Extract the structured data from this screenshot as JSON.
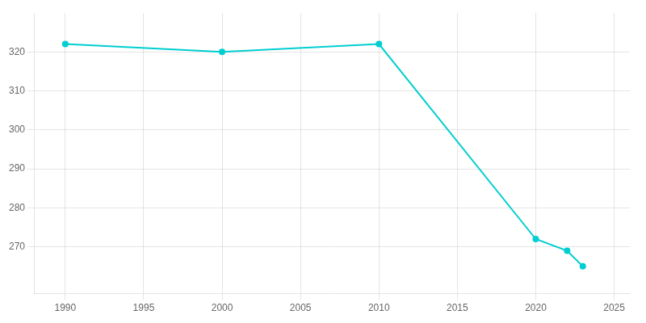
{
  "chart_data": {
    "type": "line",
    "x": [
      1990,
      2000,
      2010,
      2020,
      2022,
      2023
    ],
    "values": [
      322,
      320,
      322,
      272,
      269,
      265
    ],
    "color": "#00CED1",
    "marker": "o",
    "xlim": [
      1988,
      2026
    ],
    "ylim": [
      258,
      330
    ],
    "xticks": [
      1990,
      1995,
      2000,
      2005,
      2010,
      2015,
      2020,
      2025
    ],
    "yticks": [
      270,
      280,
      290,
      300,
      310,
      320
    ],
    "grid": true
  }
}
